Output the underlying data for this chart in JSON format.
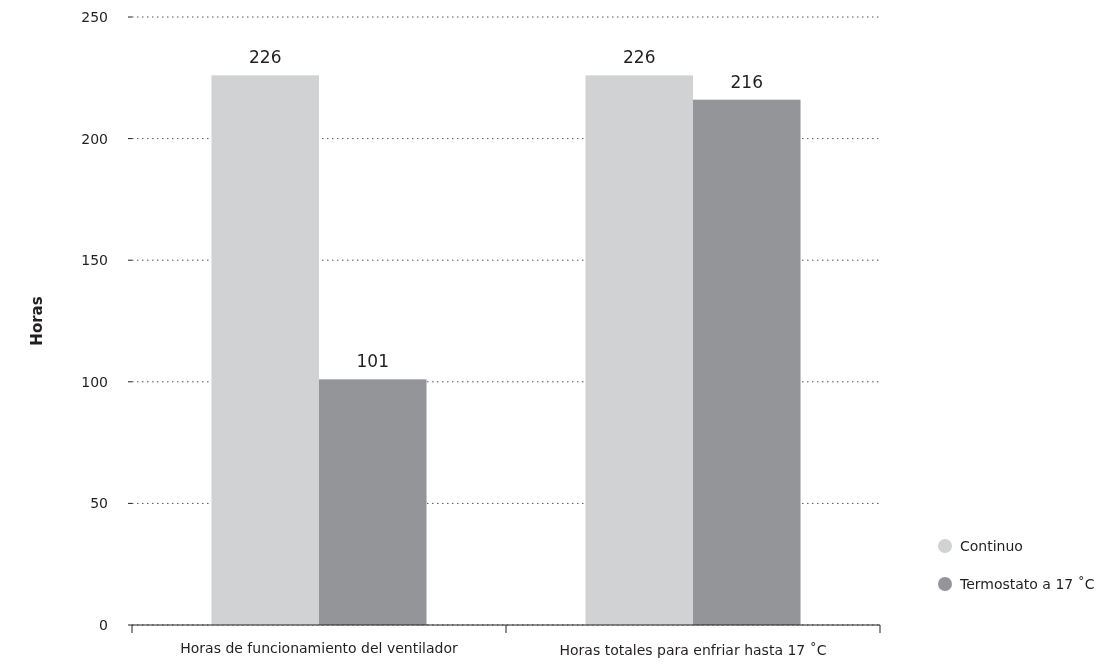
{
  "chart_data": {
    "type": "bar",
    "ylabel": "Horas",
    "categories": [
      "Horas de funcionamiento del ventilador",
      "Horas totales para enfriar hasta 17 ˚C"
    ],
    "series": [
      {
        "name": "Continuo",
        "color": "#d1d2d4",
        "values": [
          226,
          226
        ]
      },
      {
        "name": "Termostato a 17 ˚C",
        "color": "#939598",
        "values": [
          101,
          216
        ]
      }
    ],
    "ylim": [
      0,
      250
    ],
    "yticks": [
      0,
      50,
      100,
      150,
      200,
      250
    ],
    "grid": "y",
    "legend": "bottom right",
    "data_labels": true
  }
}
